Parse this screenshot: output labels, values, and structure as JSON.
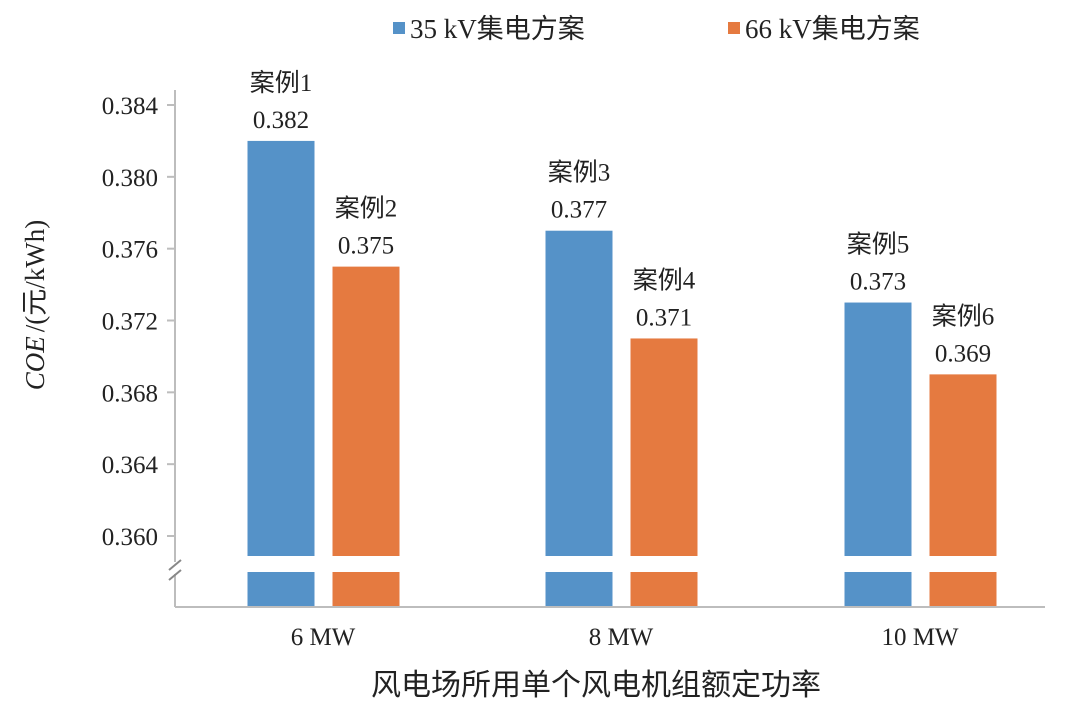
{
  "chart_data": {
    "type": "bar",
    "title": "",
    "xlabel": "风电场所用单个风电机组额定功率",
    "ylabel_italic": "COE",
    "ylabel_rest": "/(元/kWh)",
    "categories": [
      "6 MW",
      "8 MW",
      "10 MW"
    ],
    "series": [
      {
        "name": "35 kV集电方案",
        "color": "#5592c8",
        "values": [
          0.382,
          0.377,
          0.373
        ],
        "case_labels": [
          "案例1",
          "案例3",
          "案例5"
        ],
        "value_labels": [
          "0.382",
          "0.377",
          "0.373"
        ]
      },
      {
        "name": "66 kV集电方案",
        "color": "#e57a40",
        "values": [
          0.375,
          0.371,
          0.369
        ],
        "case_labels": [
          "案例2",
          "案例4",
          "案例6"
        ],
        "value_labels": [
          "0.375",
          "0.371",
          "0.369"
        ]
      }
    ],
    "yticks": [
      "0.360",
      "0.364",
      "0.368",
      "0.372",
      "0.376",
      "0.380",
      "0.384"
    ],
    "ylim": [
      0.36,
      0.384
    ],
    "axis_break": true,
    "grid": false,
    "legend_position": "top"
  }
}
